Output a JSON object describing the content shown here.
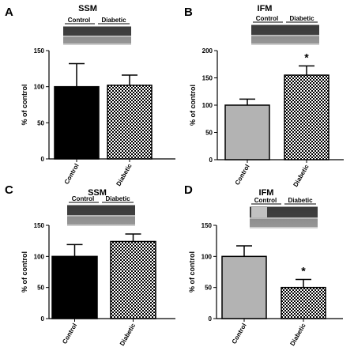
{
  "figure": {
    "panels": [
      {
        "letter": "A",
        "title": "SSM",
        "blot_labels": [
          "Control",
          "Diabetic"
        ]
      },
      {
        "letter": "B",
        "title": "IFM",
        "blot_labels": [
          "Control",
          "Diabetic"
        ]
      },
      {
        "letter": "C",
        "title": "SSM",
        "blot_labels": [
          "Control",
          "Diabetic"
        ]
      },
      {
        "letter": "D",
        "title": "IFM",
        "blot_labels": [
          "Control",
          "Diabetic"
        ]
      }
    ]
  },
  "chart_data": [
    {
      "type": "bar",
      "panel": "A",
      "title": "SSM",
      "categories": [
        "Control",
        "Diabetic"
      ],
      "values": [
        100,
        102
      ],
      "errors": [
        32,
        14
      ],
      "ylabel": "% of control",
      "ylim": [
        0,
        150
      ],
      "yticks": [
        0,
        50,
        100,
        150
      ],
      "bar_fills": [
        "black",
        "checker"
      ],
      "annotations": []
    },
    {
      "type": "bar",
      "panel": "B",
      "title": "IFM",
      "categories": [
        "Control",
        "Diabetic"
      ],
      "values": [
        100,
        155
      ],
      "errors": [
        11,
        17
      ],
      "ylabel": "% of control",
      "ylim": [
        0,
        200
      ],
      "yticks": [
        0,
        50,
        100,
        150,
        200
      ],
      "bar_fills": [
        "gray",
        "checker"
      ],
      "annotations": [
        "",
        "*"
      ]
    },
    {
      "type": "bar",
      "panel": "C",
      "title": "SSM",
      "categories": [
        "Control",
        "Diabetic"
      ],
      "values": [
        100,
        124
      ],
      "errors": [
        19,
        12
      ],
      "ylabel": "% of control",
      "ylim": [
        0,
        150
      ],
      "yticks": [
        0,
        50,
        100,
        150
      ],
      "bar_fills": [
        "black",
        "checker"
      ],
      "annotations": []
    },
    {
      "type": "bar",
      "panel": "D",
      "title": "IFM",
      "categories": [
        "Control",
        "Diabetic"
      ],
      "values": [
        100,
        50
      ],
      "errors": [
        17,
        13
      ],
      "ylabel": "% of control",
      "ylim": [
        0,
        150
      ],
      "yticks": [
        0,
        50,
        100,
        150
      ],
      "bar_fills": [
        "gray",
        "checker"
      ],
      "annotations": [
        "",
        "*"
      ]
    }
  ],
  "colors": {
    "black_bar": "#000000",
    "gray_bar": "#b3b3b3",
    "axis": "#000000",
    "blot_bg": "#bdbdbd",
    "blot_band": "#2a2a2a"
  }
}
